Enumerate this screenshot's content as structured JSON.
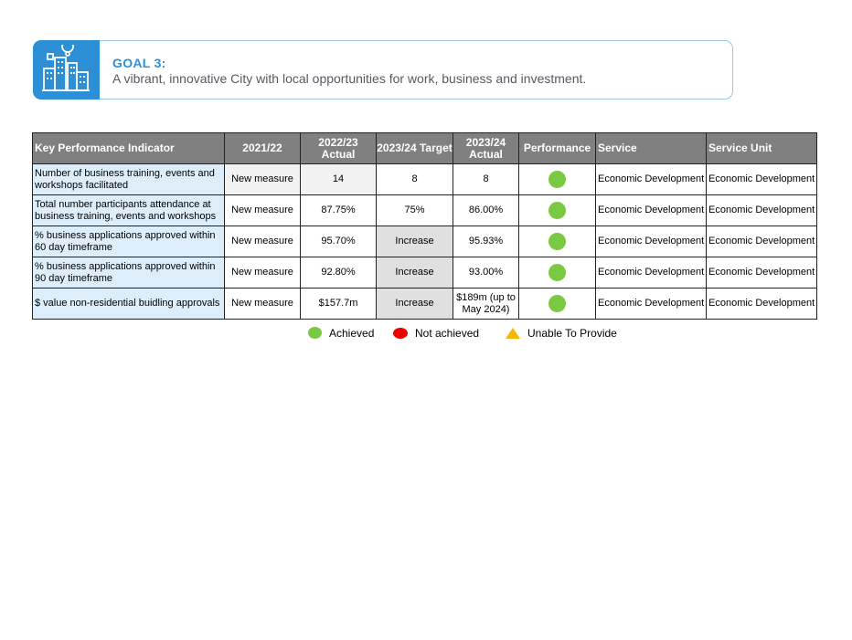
{
  "goal": {
    "title": "GOAL 3:",
    "text": "A vibrant, innovative City with local opportunities for work, business and investment.",
    "icon": "city-icon",
    "accent": "#2d8fd6"
  },
  "table": {
    "headers": {
      "kpi": "Key Performance Indicator",
      "y2122": "2021/22",
      "y2223": "2022/23 Actual",
      "y2324t": "2023/24 Target",
      "y2324a": "2023/24 Actual",
      "performance": "Performance",
      "service": "Service",
      "unit": "Service Unit"
    },
    "rows": [
      {
        "kpi": "Number of business training, events and workshops facilitated",
        "y2122": "New measure",
        "y2223": "14",
        "target": "8",
        "actual": "8",
        "performance": "Achieved",
        "service": "Economic Development",
        "unit": "Economic Development"
      },
      {
        "kpi": "Total number participants attendance at business training, events and workshops",
        "y2122": "New measure",
        "y2223": "87.75%",
        "target": "75%",
        "actual": "86.00%",
        "performance": "Achieved",
        "service": "Economic Development",
        "unit": "Economic Development"
      },
      {
        "kpi": "% business applications approved within 60 day timeframe",
        "y2122": "New measure",
        "y2223": "95.70%",
        "target": "Increase",
        "actual": "95.93%",
        "performance": "Achieved",
        "service": "Economic Development",
        "unit": "Economic Development"
      },
      {
        "kpi": "% business applications approved within 90 day timeframe",
        "y2122": "New measure",
        "y2223": "92.80%",
        "target": "Increase",
        "actual": "93.00%",
        "performance": "Achieved",
        "service": "Economic Development",
        "unit": "Economic Development"
      },
      {
        "kpi": "$ value non-residential buidling approvals",
        "y2122": "New measure",
        "y2223": "$157.7m",
        "target": "Increase",
        "actual": "$189m (up to May 2024)",
        "performance": "Achieved",
        "service": "Economic Development",
        "unit": "Economic Development"
      }
    ]
  },
  "legend": {
    "achieved": "Achieved",
    "not_achieved": "Not achieved",
    "unable": "Unable To Provide",
    "colors": {
      "achieved": "#7ac943",
      "not_achieved": "#ee0000",
      "unable": "#f5b800"
    }
  }
}
